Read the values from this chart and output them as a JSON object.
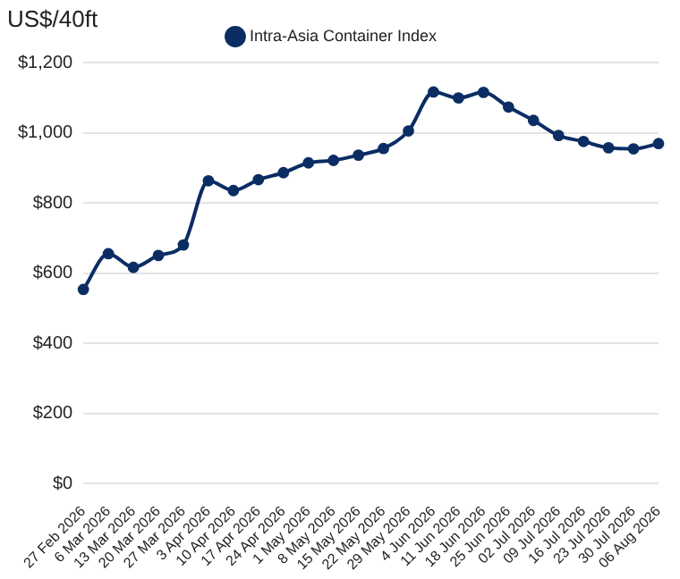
{
  "chart_data": {
    "type": "line",
    "ylabel": "US$/40ft",
    "categories": [
      "27 Feb 2026",
      "6 Mar 2026",
      "13 Mar 2026",
      "20 Mar 2026",
      "27 Mar 2026",
      "3 Apr 2026",
      "10 Apr 2026",
      "17 Apr 2026",
      "24 Apr 2026",
      "1 May 2026",
      "8 May 2026",
      "15 May 2026",
      "22 May 2026",
      "29 May 2026",
      "4 Jun 2026",
      "11 Jun 2026",
      "18 Jun 2026",
      "25 Jun 2026",
      "02 Jul 2026",
      "09 Jul 2026",
      "16 Jul 2026",
      "23 Jul 2026",
      "30 Jul 2026",
      "06 Aug 2026"
    ],
    "series": [
      {
        "name": "Intra-Asia Container Index",
        "color": "#0b2d64",
        "values": [
          553,
          655,
          616,
          650,
          680,
          863,
          835,
          866,
          886,
          914,
          921,
          936,
          955,
          1005,
          1116,
          1099,
          1115,
          1073,
          1035,
          992,
          975,
          957,
          954,
          969
        ]
      }
    ],
    "ylim": [
      0,
      1200
    ],
    "yticks": [
      {
        "value": 0,
        "label": "$0"
      },
      {
        "value": 200,
        "label": "$200"
      },
      {
        "value": 400,
        "label": "$400"
      },
      {
        "value": 600,
        "label": "$600"
      },
      {
        "value": 800,
        "label": "$800"
      },
      {
        "value": 1000,
        "label": "$1,000"
      },
      {
        "value": 1200,
        "label": "$1,200"
      }
    ],
    "grid": "y",
    "legend": "top",
    "marker": "circle",
    "line_style": "solid"
  }
}
